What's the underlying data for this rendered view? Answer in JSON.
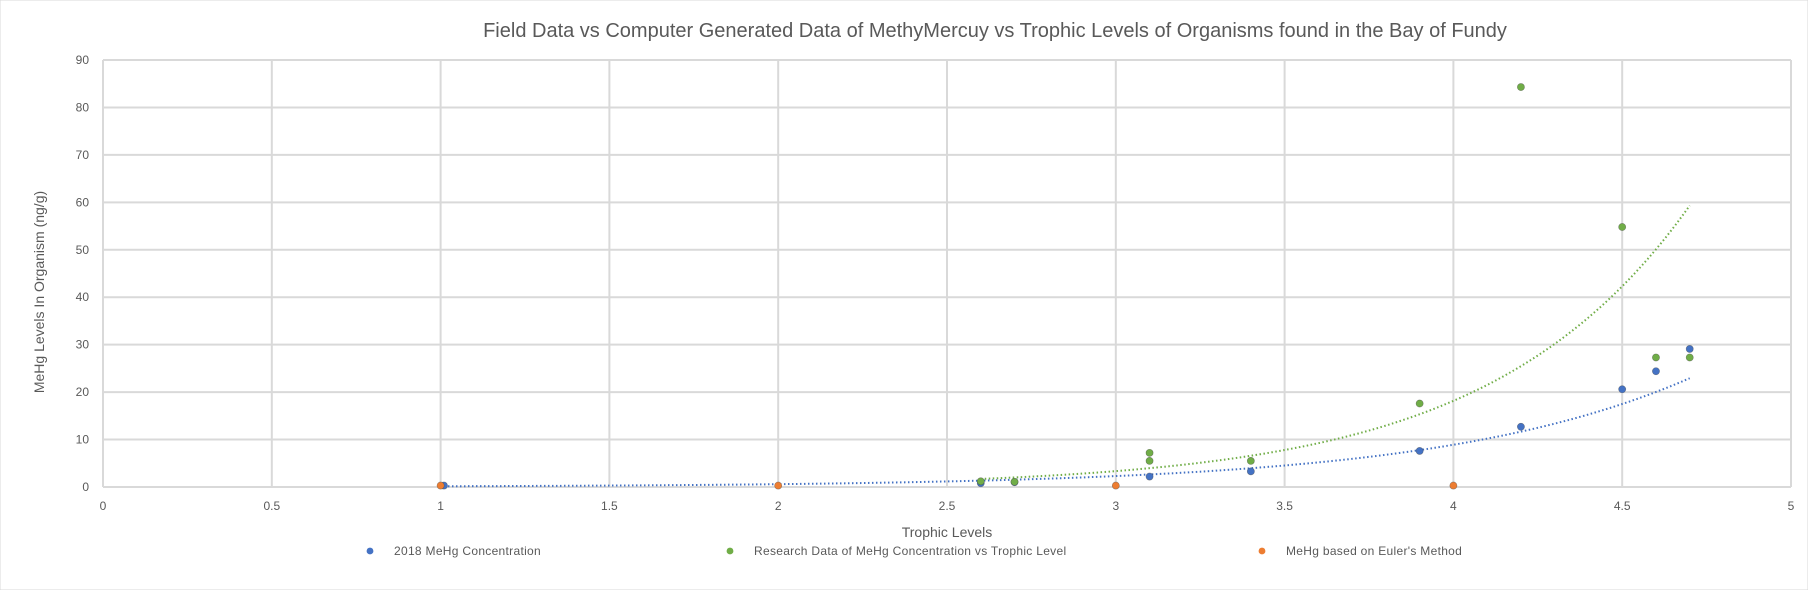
{
  "chart_data": {
    "type": "scatter",
    "title": "Field Data vs  Computer Generated Data of MethyMercuy vs Trophic Levels of Organisms found in the Bay of Fundy",
    "xlabel": "Trophic Levels",
    "ylabel": "MeHg Levels In Organism (ng/g)",
    "xlim": [
      0,
      5
    ],
    "ylim": [
      0,
      90
    ],
    "x_ticks": [
      "0",
      "0.5",
      "1",
      "1.5",
      "2",
      "2.5",
      "3",
      "3.5",
      "4",
      "4.5",
      "5"
    ],
    "y_ticks": [
      "0",
      "10",
      "20",
      "30",
      "40",
      "50",
      "60",
      "70",
      "80",
      "90"
    ],
    "grid": true,
    "legend_position": "bottom",
    "series": [
      {
        "name": "2018 MeHg Concentration",
        "color": "#4472c4",
        "trendline": "exponential",
        "points": [
          {
            "x": 1.01,
            "y": 0.3
          },
          {
            "x": 2.6,
            "y": 0.8
          },
          {
            "x": 2.7,
            "y": 1.0
          },
          {
            "x": 3.1,
            "y": 2.2
          },
          {
            "x": 3.4,
            "y": 3.3
          },
          {
            "x": 3.9,
            "y": 7.6
          },
          {
            "x": 4.2,
            "y": 12.7
          },
          {
            "x": 4.5,
            "y": 20.6
          },
          {
            "x": 4.6,
            "y": 24.4
          },
          {
            "x": 4.7,
            "y": 29.1
          }
        ]
      },
      {
        "name": "Research Data of MeHg Concentration vs Trophic Level",
        "color": "#70ad47",
        "trendline": "exponential",
        "points": [
          {
            "x": 2.6,
            "y": 1.2
          },
          {
            "x": 2.7,
            "y": 1.1
          },
          {
            "x": 3.1,
            "y": 7.2
          },
          {
            "x": 3.1,
            "y": 5.5
          },
          {
            "x": 3.4,
            "y": 5.5
          },
          {
            "x": 3.9,
            "y": 17.6
          },
          {
            "x": 4.2,
            "y": 84.3
          },
          {
            "x": 4.5,
            "y": 54.8
          },
          {
            "x": 4.6,
            "y": 27.3
          },
          {
            "x": 4.7,
            "y": 27.3
          }
        ]
      },
      {
        "name": "MeHg based on Euler's Method",
        "color": "#ed7d31",
        "points": [
          {
            "x": 1.0,
            "y": 0.3
          },
          {
            "x": 2.0,
            "y": 0.3
          },
          {
            "x": 3.0,
            "y": 0.3
          },
          {
            "x": 4.0,
            "y": 0.3
          }
        ]
      }
    ]
  }
}
